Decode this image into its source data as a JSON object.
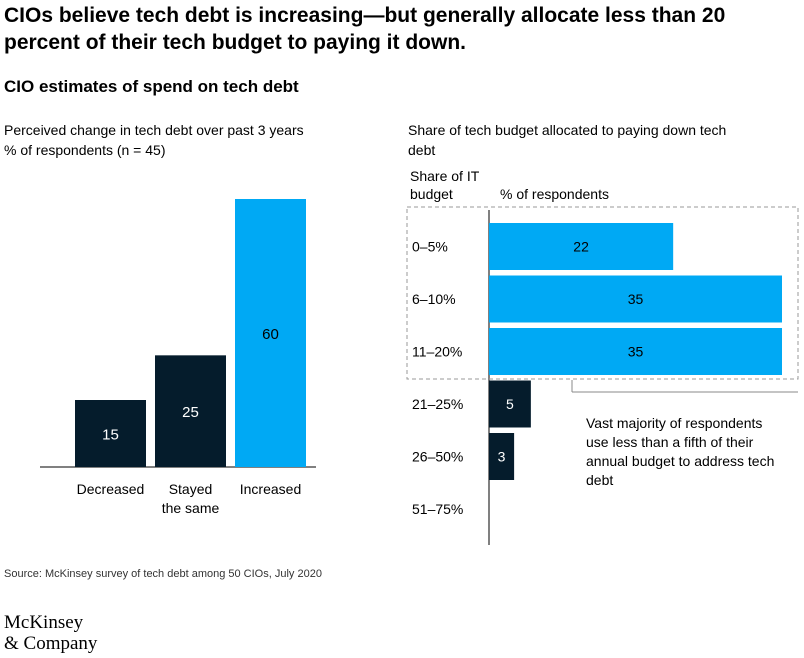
{
  "title": "CIOs believe tech debt is increasing—but generally allocate less than 20 percent of their tech budget to paying it down.",
  "subtitle": "CIO estimates of spend on tech debt",
  "source": "Source: McKinsey survey of tech debt among 50 CIOs, July 2020",
  "logo": {
    "line1": "McKinsey",
    "line2": "& Company"
  },
  "colors": {
    "dark_navy": "#051c2c",
    "bright_blue": "#00a9f4",
    "axis": "#000000",
    "dashed_box": "#999999"
  },
  "chart_data": [
    {
      "type": "bar",
      "title": "Perceived change in tech debt over past 3 years",
      "ylabel": "% of respondents (n = 45)",
      "categories": [
        "Decreased",
        "Stayed the same",
        "Increased"
      ],
      "category_lines": [
        [
          "Decreased"
        ],
        [
          "Stayed",
          "the same"
        ],
        [
          "Increased"
        ]
      ],
      "values": [
        15,
        25,
        60
      ],
      "colors": [
        "#051c2c",
        "#051c2c",
        "#00a9f4"
      ],
      "ylim": [
        0,
        60
      ],
      "grid": false
    },
    {
      "type": "bar",
      "orientation": "horizontal",
      "title": "Share of tech budget allocated to paying down tech debt",
      "category_header": "Share of IT budget",
      "value_header": "% of respondents",
      "categories": [
        "0–5%",
        "6–10%",
        "11–20%",
        "21–25%",
        "26–50%",
        "51–75%"
      ],
      "values": [
        22,
        35,
        35,
        5,
        3,
        0
      ],
      "colors": [
        "#00a9f4",
        "#00a9f4",
        "#00a9f4",
        "#051c2c",
        "#051c2c",
        "#051c2c"
      ],
      "xlim": [
        0,
        35
      ],
      "grid": false,
      "highlight": {
        "categories": [
          "0–5%",
          "6–10%",
          "11–20%"
        ],
        "style": "dashed-box"
      },
      "annotation": "Vast majority of respondents use less than a fifth of their annual budget to address tech debt"
    }
  ]
}
